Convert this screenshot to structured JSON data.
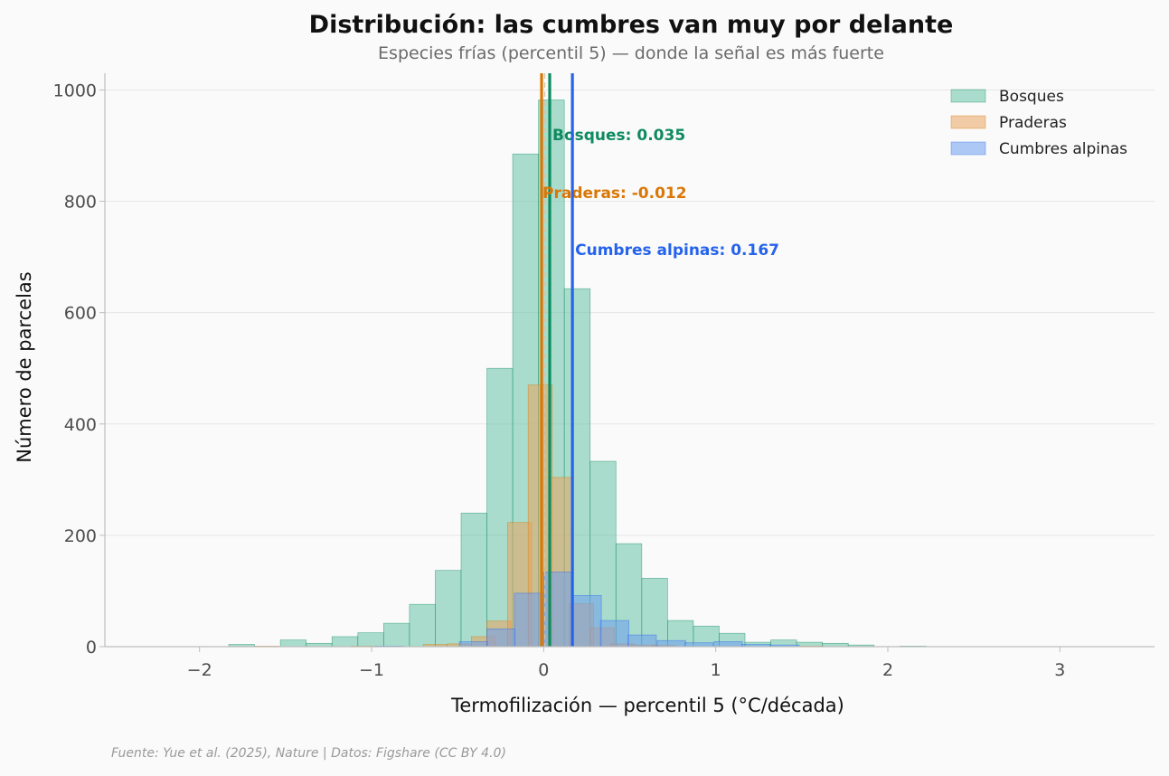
{
  "colors": {
    "Bosques": "#66c2a5",
    "Praderas": "#e8a45e",
    "Cumbres alpinas": "#6e9ef0",
    "mean_Bosques": "#0f8a5f",
    "mean_Praderas": "#d97706",
    "mean_Cumbres alpinas": "#2563eb"
  },
  "chart_data": {
    "type": "histogram",
    "title": "Distribución: las cumbres van muy por delante",
    "subtitle": "Especies frías (percentil 5) — donde la señal es más fuerte",
    "xlabel": "Termofilización — percentil 5 (°C/década)",
    "ylabel": "Número de parcelas",
    "xlim": [
      -2.55,
      3.55
    ],
    "ylim": [
      0,
      1030
    ],
    "xticks": [
      -2,
      -1,
      0,
      1,
      2,
      3
    ],
    "xtick_labels": [
      "−2",
      "−1",
      "0",
      "1",
      "2",
      "3"
    ],
    "yticks": [
      0,
      200,
      400,
      600,
      800,
      1000
    ],
    "ytick_labels": [
      "0",
      "200",
      "400",
      "600",
      "800",
      "1000"
    ],
    "grid": "horizontal",
    "legend_position": "top-right",
    "source": "Fuente: Yue et al. (2025), Nature | Datos: Figshare (CC BY 4.0)",
    "series": [
      {
        "name": "Bosques",
        "bin_width": 0.15,
        "bins": [
          {
            "x0": -1.83,
            "count": 4
          },
          {
            "x0": -1.53,
            "count": 12
          },
          {
            "x0": -1.38,
            "count": 6
          },
          {
            "x0": -1.23,
            "count": 18
          },
          {
            "x0": -1.08,
            "count": 25
          },
          {
            "x0": -0.93,
            "count": 42
          },
          {
            "x0": -0.78,
            "count": 76
          },
          {
            "x0": -0.63,
            "count": 137
          },
          {
            "x0": -0.48,
            "count": 240
          },
          {
            "x0": -0.33,
            "count": 500
          },
          {
            "x0": -0.18,
            "count": 885
          },
          {
            "x0": -0.03,
            "count": 982
          },
          {
            "x0": 0.12,
            "count": 643
          },
          {
            "x0": 0.27,
            "count": 333
          },
          {
            "x0": 0.42,
            "count": 185
          },
          {
            "x0": 0.57,
            "count": 123
          },
          {
            "x0": 0.72,
            "count": 47
          },
          {
            "x0": 0.87,
            "count": 37
          },
          {
            "x0": 1.02,
            "count": 24
          },
          {
            "x0": 1.17,
            "count": 8
          },
          {
            "x0": 1.32,
            "count": 12
          },
          {
            "x0": 1.47,
            "count": 8
          },
          {
            "x0": 1.62,
            "count": 6
          },
          {
            "x0": 1.77,
            "count": 3
          },
          {
            "x0": 2.07,
            "count": 1
          }
        ],
        "mean": 0.035,
        "mean_label": "Bosques: 0.035"
      },
      {
        "name": "Praderas",
        "bin_width": 0.14,
        "bins": [
          {
            "x0": -1.68,
            "count": 1
          },
          {
            "x0": -1.12,
            "count": 1
          },
          {
            "x0": -0.7,
            "count": 4
          },
          {
            "x0": -0.56,
            "count": 5
          },
          {
            "x0": -0.42,
            "count": 18
          },
          {
            "x0": -0.33,
            "count": 46
          },
          {
            "x0": -0.21,
            "count": 223
          },
          {
            "x0": -0.09,
            "count": 470
          },
          {
            "x0": 0.03,
            "count": 304
          },
          {
            "x0": 0.15,
            "count": 77
          },
          {
            "x0": 0.27,
            "count": 34
          },
          {
            "x0": 0.39,
            "count": 5
          },
          {
            "x0": 0.51,
            "count": 3
          },
          {
            "x0": 0.63,
            "count": 2
          },
          {
            "x0": 1.49,
            "count": 1
          }
        ],
        "mean": -0.012,
        "mean_label": "Praderas: -0.012"
      },
      {
        "name": "Cumbres alpinas",
        "bin_width": 0.165,
        "bins": [
          {
            "x0": -0.98,
            "count": 1
          },
          {
            "x0": -0.49,
            "count": 9
          },
          {
            "x0": -0.33,
            "count": 32
          },
          {
            "x0": -0.17,
            "count": 96
          },
          {
            "x0": 0.0,
            "count": 134
          },
          {
            "x0": 0.17,
            "count": 92
          },
          {
            "x0": 0.33,
            "count": 47
          },
          {
            "x0": 0.49,
            "count": 21
          },
          {
            "x0": 0.66,
            "count": 11
          },
          {
            "x0": 0.82,
            "count": 7
          },
          {
            "x0": 0.99,
            "count": 9
          },
          {
            "x0": 1.15,
            "count": 4
          },
          {
            "x0": 1.32,
            "count": 3
          }
        ],
        "mean": 0.167,
        "mean_label": "Cumbres alpinas: 0.167"
      }
    ]
  }
}
